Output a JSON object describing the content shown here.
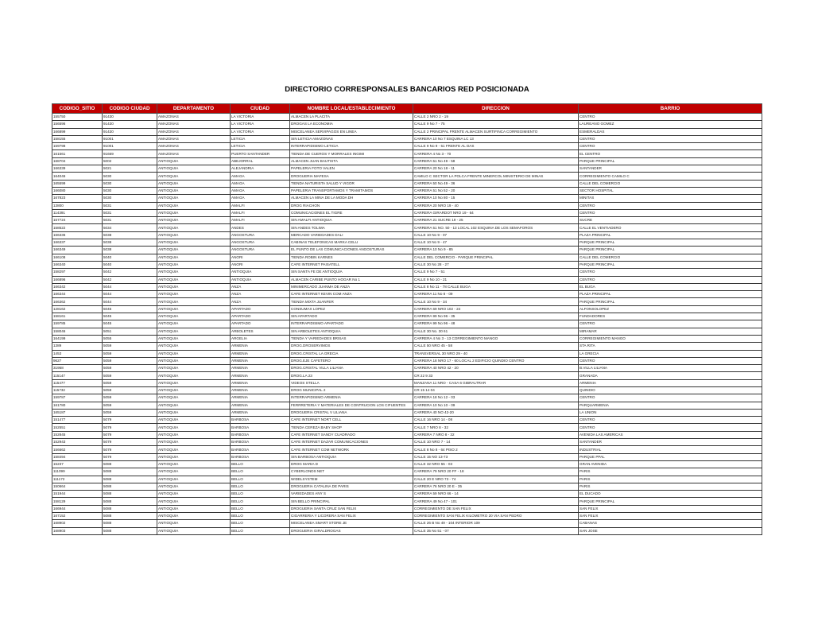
{
  "title": "DIRECTORIO CORRESPONSALES BANCARIOS RED POSICIONADA",
  "colors": {
    "header_bg": "#c00000",
    "header_text": "#ffffff"
  },
  "columns": [
    "CODIGO_SITIO",
    "CODIGO CIUDAD",
    "DEPARTAMENTO",
    "CIUDAD",
    "NOMBRE LOCAL/ESTABLECIMIENTO",
    "DIRECCION",
    "BARRIO"
  ],
  "rows": [
    [
      "155750",
      "91430",
      "AMAZONAS",
      "LA VICTORIA",
      "ALMACEN LA PLACITA",
      "CALLE 2 NRO 2 - 19",
      "CENTRO"
    ],
    [
      "156596",
      "91430",
      "AMAZONAS",
      "LA VICTORIA",
      "DROGAS LA ECONOMIA",
      "CALLE 9 No 7 - 75",
      "LAUREANO GOMEZ"
    ],
    [
      "166899",
      "91430",
      "AMAZONAS",
      "LA VICTORIA",
      "MISCELANEA SERVIPAGOS EN LINEA",
      "CALLE 2 PRINCIPAL FRENTE ALMACEN SURTIFINCA CORREGIMIENTO",
      "ESMERALDAS"
    ],
    [
      "158155",
      "91001",
      "AMAZONAS",
      "LETICIA",
      "SIN LETICIA AMAZONAS",
      "CARRERA 10 No 7 ESQUINA LC 13",
      "CENTRO"
    ],
    [
      "159798",
      "91001",
      "AMAZONAS",
      "LETICIA",
      "INTERRAPIDISIMO LETICIA",
      "CALLE 9 No 9 - 51 FRENTE AL DAS",
      "CENTRO"
    ],
    [
      "161561",
      "91669",
      "AMAZONAS",
      "PUERTO SANTANDER",
      "TIENDA DE CUEROS Y MORRALES INGIMI",
      "CARRERA 4 No 3 - 70",
      "EL CENTRO"
    ],
    [
      "168704",
      "5002",
      "ANTIOQUIA",
      "ABEJORRAL",
      "ALMACEN JUAN BAUTISTA",
      "CARRERA 51 No 49 - 58",
      "PARQUE PRINCIPAL"
    ],
    [
      "166339",
      "5021",
      "ANTIOQUIA",
      "ALEJANDRIA",
      "PAPELERIA FOTO VALEN",
      "CARRERA 20 No 18 - 11",
      "SANTANDER"
    ],
    [
      "164046",
      "5030",
      "ANTIOQUIA",
      "AMAGA",
      "DROGUERIA MAFESA",
      "CAMILO C SECTOR LA POLCA FRENTE MINERCOL MINISTERIO DE MINAS",
      "CORREGIMIENTO CAMILO C"
    ],
    [
      "165599",
      "5030",
      "ANTIOQUIA",
      "AMAGA",
      "TIENDA NATURISTA SALUD Y VIGOR",
      "CARRERA 50 No 49 - 36",
      "CALLE DEL COMERCIO"
    ],
    [
      "166080",
      "5030",
      "ANTIOQUIA",
      "AMAGA",
      "PAPELERIA TRANSPORTAMOS Y TRAMITAMOS",
      "CARRERA 51 No 52 - 20",
      "SECTOR HOSPITAL"
    ],
    [
      "167823",
      "5030",
      "ANTIOQUIA",
      "AMAGA",
      "ALMACEN LA MINA DE LA MODA DH",
      "CARRERA 10 No 80 - 15",
      "MINITAS"
    ],
    [
      "13800",
      "5031",
      "ANTIOQUIA",
      "AMALFI",
      "DROG RIACHON",
      "CARRERA 20  NRO 19 - 40",
      "CENTRO"
    ],
    [
      "114391",
      "5031",
      "ANTIOQUIA",
      "AMALFI",
      "COMUNICACIONES EL TIGRE",
      "CARRERA GIRARDOT NRO 19 - 64",
      "CENTRO"
    ],
    [
      "157724",
      "5031",
      "ANTIOQUIA",
      "AMALFI",
      "SIN AMALFI ANTIOQUIA",
      "CARRERA 21 SUCRE 19 - 25",
      "SUCRE"
    ],
    [
      "158522",
      "5034",
      "ANTIOQUIA",
      "ANDES",
      "SIN ANDES TOLIMA",
      "CARRERA 51 NO. 50 - 13 LOCAL 102 ESQUINA DE LOS SEMAFOROS",
      "CALLE EL VENTIADERO"
    ],
    [
      "166336",
      "5038",
      "ANTIOQUIA",
      "ANGOSTURA",
      "MERCADO VARIEDADES DALI",
      "CALLE 10 No 9 - 07",
      "PLAZA PRINCIPAL"
    ],
    [
      "166337",
      "5038",
      "ANTIOQUIA",
      "ANGOSTURA",
      "CABINAS TELEFONICAS MARKA CELU",
      "CALLE 10 No 9 - 47",
      "PARQUE PRINCIPAL"
    ],
    [
      "166349",
      "5038",
      "ANTIOQUIA",
      "ANGOSTURA",
      "EL PUNTO DE LAS COMUNICACIONES ANGOSTURAS",
      "CARRERA 10 No 9 - 85",
      "PARQUE PRINCIPAL"
    ],
    [
      "166108",
      "5040",
      "ANTIOQUIA",
      "ANORI",
      "TIENDA ROBIN KARNES",
      "CALLE DEL COMERCIO - PARQUE PRINCIPAL",
      "CALLE DEL COMERCIO"
    ],
    [
      "166340",
      "5040",
      "ANTIOQUIA",
      "ANORI",
      "CAFE INTERNET PAISATELL",
      "CALLE 30 No 28 - 27",
      "PARQUE PRINCIPAL"
    ],
    [
      "158297",
      "5042",
      "ANTIOQUIA",
      "ANTIOQUIA",
      "SIN SANTA FE DE ANTIOQUIA",
      "CALLE 9 No 7 - 51",
      "CENTRO"
    ],
    [
      "166896",
      "5042",
      "ANTIOQUIA",
      "ANTIOQUIA",
      "ALMACEN CARIBE PUNTO HOGAR No 1",
      "CALLE 9 No 10 - 21",
      "CENTRO"
    ],
    [
      "166342",
      "5044",
      "ANTIOQUIA",
      "ANZA",
      "MINIMERCADO JUANMA DE ANZA",
      "CALLE 8 No 11 - 78 CALLE BUGA",
      "EL BUGA"
    ],
    [
      "166344",
      "5044",
      "ANTIOQUIA",
      "ANZA",
      "CAFE INTERNET KEVIN COM ANZA",
      "CARRERA 11 No 8 - 09",
      "PLAZA PRINCIPAL"
    ],
    [
      "166362",
      "5044",
      "ANTIOQUIA",
      "ANZA",
      "TIENDA MIXTA JUANFER",
      "CALLE 10 No 9 - 34",
      "PARQUE PRINCIPAL"
    ],
    [
      "128162",
      "5045",
      "ANTIOQUIA",
      "APARTADO",
      "CONSUMAX LOPEZ",
      "CARRERA 69 NRO 102 - 24",
      "ALFONSOLOPEZ"
    ],
    [
      "158161",
      "5045",
      "ANTIOQUIA",
      "APARTADO",
      "SIN APARTADO",
      "CARRERA 99 No 96 - 35",
      "FUNDADORES"
    ],
    [
      "159785",
      "5045",
      "ANTIOQUIA",
      "APARTADO",
      "INTERRAPIDISIMO APARTADO",
      "CARRERA 99 No 96 - 48",
      "CENTRO"
    ],
    [
      "158046",
      "5051",
      "ANTIOQUIA",
      "ARBOLETES",
      "SIN ARBOLETES ANTIOQUIA",
      "CALLE 30 No. 30 61",
      "MIRAMAR"
    ],
    [
      "164199",
      "5055",
      "ANTIOQUIA",
      "ARGELIA",
      "TIENDA Y VARIEDADES BRISAS",
      "CARRERA 4 No 3 - 13 CORREGIMIENTO MANGO",
      "CORREGIMIENTO MANGO"
    ],
    [
      "1389",
      "5059",
      "ANTIOQUIA",
      "ARMENIA",
      "DROG.DROSERVIMOS",
      "CALLE 50 NRO 45 - 58",
      "STA RITA"
    ],
    [
      "1453",
      "5059",
      "ANTIOQUIA",
      "ARMENIA",
      "DROG.CRISTAL LA GRECIA",
      "TRANSVERSAL 30 NRO 29 - 40",
      "LA GRECIA"
    ],
    [
      "9627",
      "5059",
      "ANTIOQUIA",
      "ARMENIA",
      "DROG.EJE CAFETERO",
      "CARRERA 18 NRO 17 - 60 LOCAL 2 EDIFICIO QUINDIO CENTRO",
      "CENTRO"
    ],
    [
      "31958",
      "5059",
      "ANTIOQUIA",
      "ARMENIA",
      "DROG.CRISTAL VILLA LILIANA",
      "CARRERA 40 NRO 42 - 20",
      "B.VILLA LILIANA"
    ],
    [
      "115147",
      "5059",
      "ANTIOQUIA",
      "ARMENIA",
      "DROG.LA 23",
      "CR 22  9 33",
      "GRANADA"
    ],
    [
      "115477",
      "5059",
      "ANTIOQUIA",
      "ARMENIA",
      "VIDEOS STELLA",
      "MANZANA 11  NRO  -  CASA 6 GIBRALTRAR",
      "ARMENIA"
    ],
    [
      "115732",
      "5059",
      "ANTIOQUIA",
      "ARMENIA",
      "DROG MUNICIPAL  2",
      "CR 15  14 04",
      "QUINDIO"
    ],
    [
      "159787",
      "5059",
      "ANTIOQUIA",
      "ARMENIA",
      "INTERRAPIDISIMO ARMENIA",
      "CARRERA 18 No 12 - 03",
      "CENTRO"
    ],
    [
      "161780",
      "5059",
      "ANTIOQUIA",
      "ARMENIA",
      "FERRRETERIA Y MATERIALES DE CONTRUCION LOS CIFUENTES",
      "CARRERA 10 No 10 - 09",
      "PARQUARMENIA"
    ],
    [
      "165187",
      "5059",
      "ANTIOQUIA",
      "ARMENIA",
      "DROGUERIA CRISTAL V LILIANA",
      "CARRERA 40 NO 42-20",
      "LA UNION"
    ],
    [
      "151477",
      "5079",
      "ANTIOQUIA",
      "BARBOSA",
      "CAFE INTERNET NORT CELL",
      "CALLE 16 NRO 14 - 08",
      "CENTRO"
    ],
    [
      "152551",
      "5079",
      "ANTIOQUIA",
      "BARBOSA",
      "TIENDA CEREZA BABY SHOP",
      "CALLE 7 NRO 8 - 32",
      "CENTRO"
    ],
    [
      "152845",
      "5079",
      "ANTIOQUIA",
      "BARBOSA",
      "CAFE INTERNET SANDY CUADRADO",
      "CARRERA 7  NRO 8 - 32",
      "AVENIDA LAS AMERICAS"
    ],
    [
      "152943",
      "5079",
      "ANTIOQUIA",
      "BARBOSA",
      "CAFE INTERNET DAZAR COMUNICACIONES",
      "CALLE 10 NRO 7 - 14",
      "SANTANDER"
    ],
    [
      "156662",
      "5079",
      "ANTIOQUIA",
      "BARBOSA",
      "CAFE INTERNET COM NETWORK",
      "CALLE 8 No 8 - 64 PISO 2",
      "INDUSTRIAL"
    ],
    [
      "158494",
      "5079",
      "ANTIOQUIA",
      "BARBOSA",
      "SIN BARBOSA ANTIOQUIA",
      "CALLE 15 NO 13-73",
      "PARQUE PPAL"
    ],
    [
      "15237",
      "5088",
      "ANTIOQUIA",
      "BELLO",
      "DROG MARIA D",
      "CALLE 32 NRO 55 - 03",
      "GRAN AVENIDA"
    ],
    [
      "111099",
      "5088",
      "ANTIOQUIA",
      "BELLO",
      "CYBERLONDS NET",
      "CARRERA 79 NRO 20 FF - 18",
      "PARIS"
    ],
    [
      "111172",
      "5088",
      "ANTIOQUIA",
      "BELLO",
      "WIDELSYSTEM",
      "CALLE 20 E NRO 73 - 74",
      "PARIS"
    ],
    [
      "150664",
      "5088",
      "ANTIOQUIA",
      "BELLO",
      "DROGUERIA CATALINA DE PARIS",
      "CARRERA 76 NRO 20 E - 35",
      "PARIS"
    ],
    [
      "151944",
      "5088",
      "ANTIOQUIA",
      "BELLO",
      "VARIEDADES ANY S",
      "CARRERA 59  NRO 66 - 14",
      "EL DUCADO"
    ],
    [
      "158129",
      "5088",
      "ANTIOQUIA",
      "BELLO",
      "SIN BELLO PRINCIPAL",
      "CARRERA 49 No 47 - 101",
      "PARQUE PRINCIPAL"
    ],
    [
      "166944",
      "5088",
      "ANTIOQUIA",
      "BELLO",
      "DROGUERIA SANTA CRUZ SAN FELIX",
      "CORREGIMIENTO DE SAN FELIX",
      "SAN FELIX"
    ],
    [
      "167152",
      "5088",
      "ANTIOQUIA",
      "BELLO",
      "CIGARRERIA Y LICORERA SAN FELIX",
      "CORREGIMIENTO SAN FELIX KILOMETRO 20 VIA SAN PEDRO",
      "SAN FELIX"
    ],
    [
      "168902",
      "5088",
      "ANTIOQUIA",
      "BELLO",
      "MISCELANEA SMART STORE JE",
      "CALLE 26 B No 49 - 104 INTERIOR 109",
      "CABANAS"
    ],
    [
      "168903",
      "5088",
      "ANTIOQUIA",
      "BELLO",
      "DROGUERIA GIRALDROGAS",
      "CALLE 35 No 51 - 07",
      "SAN JOSE"
    ]
  ]
}
